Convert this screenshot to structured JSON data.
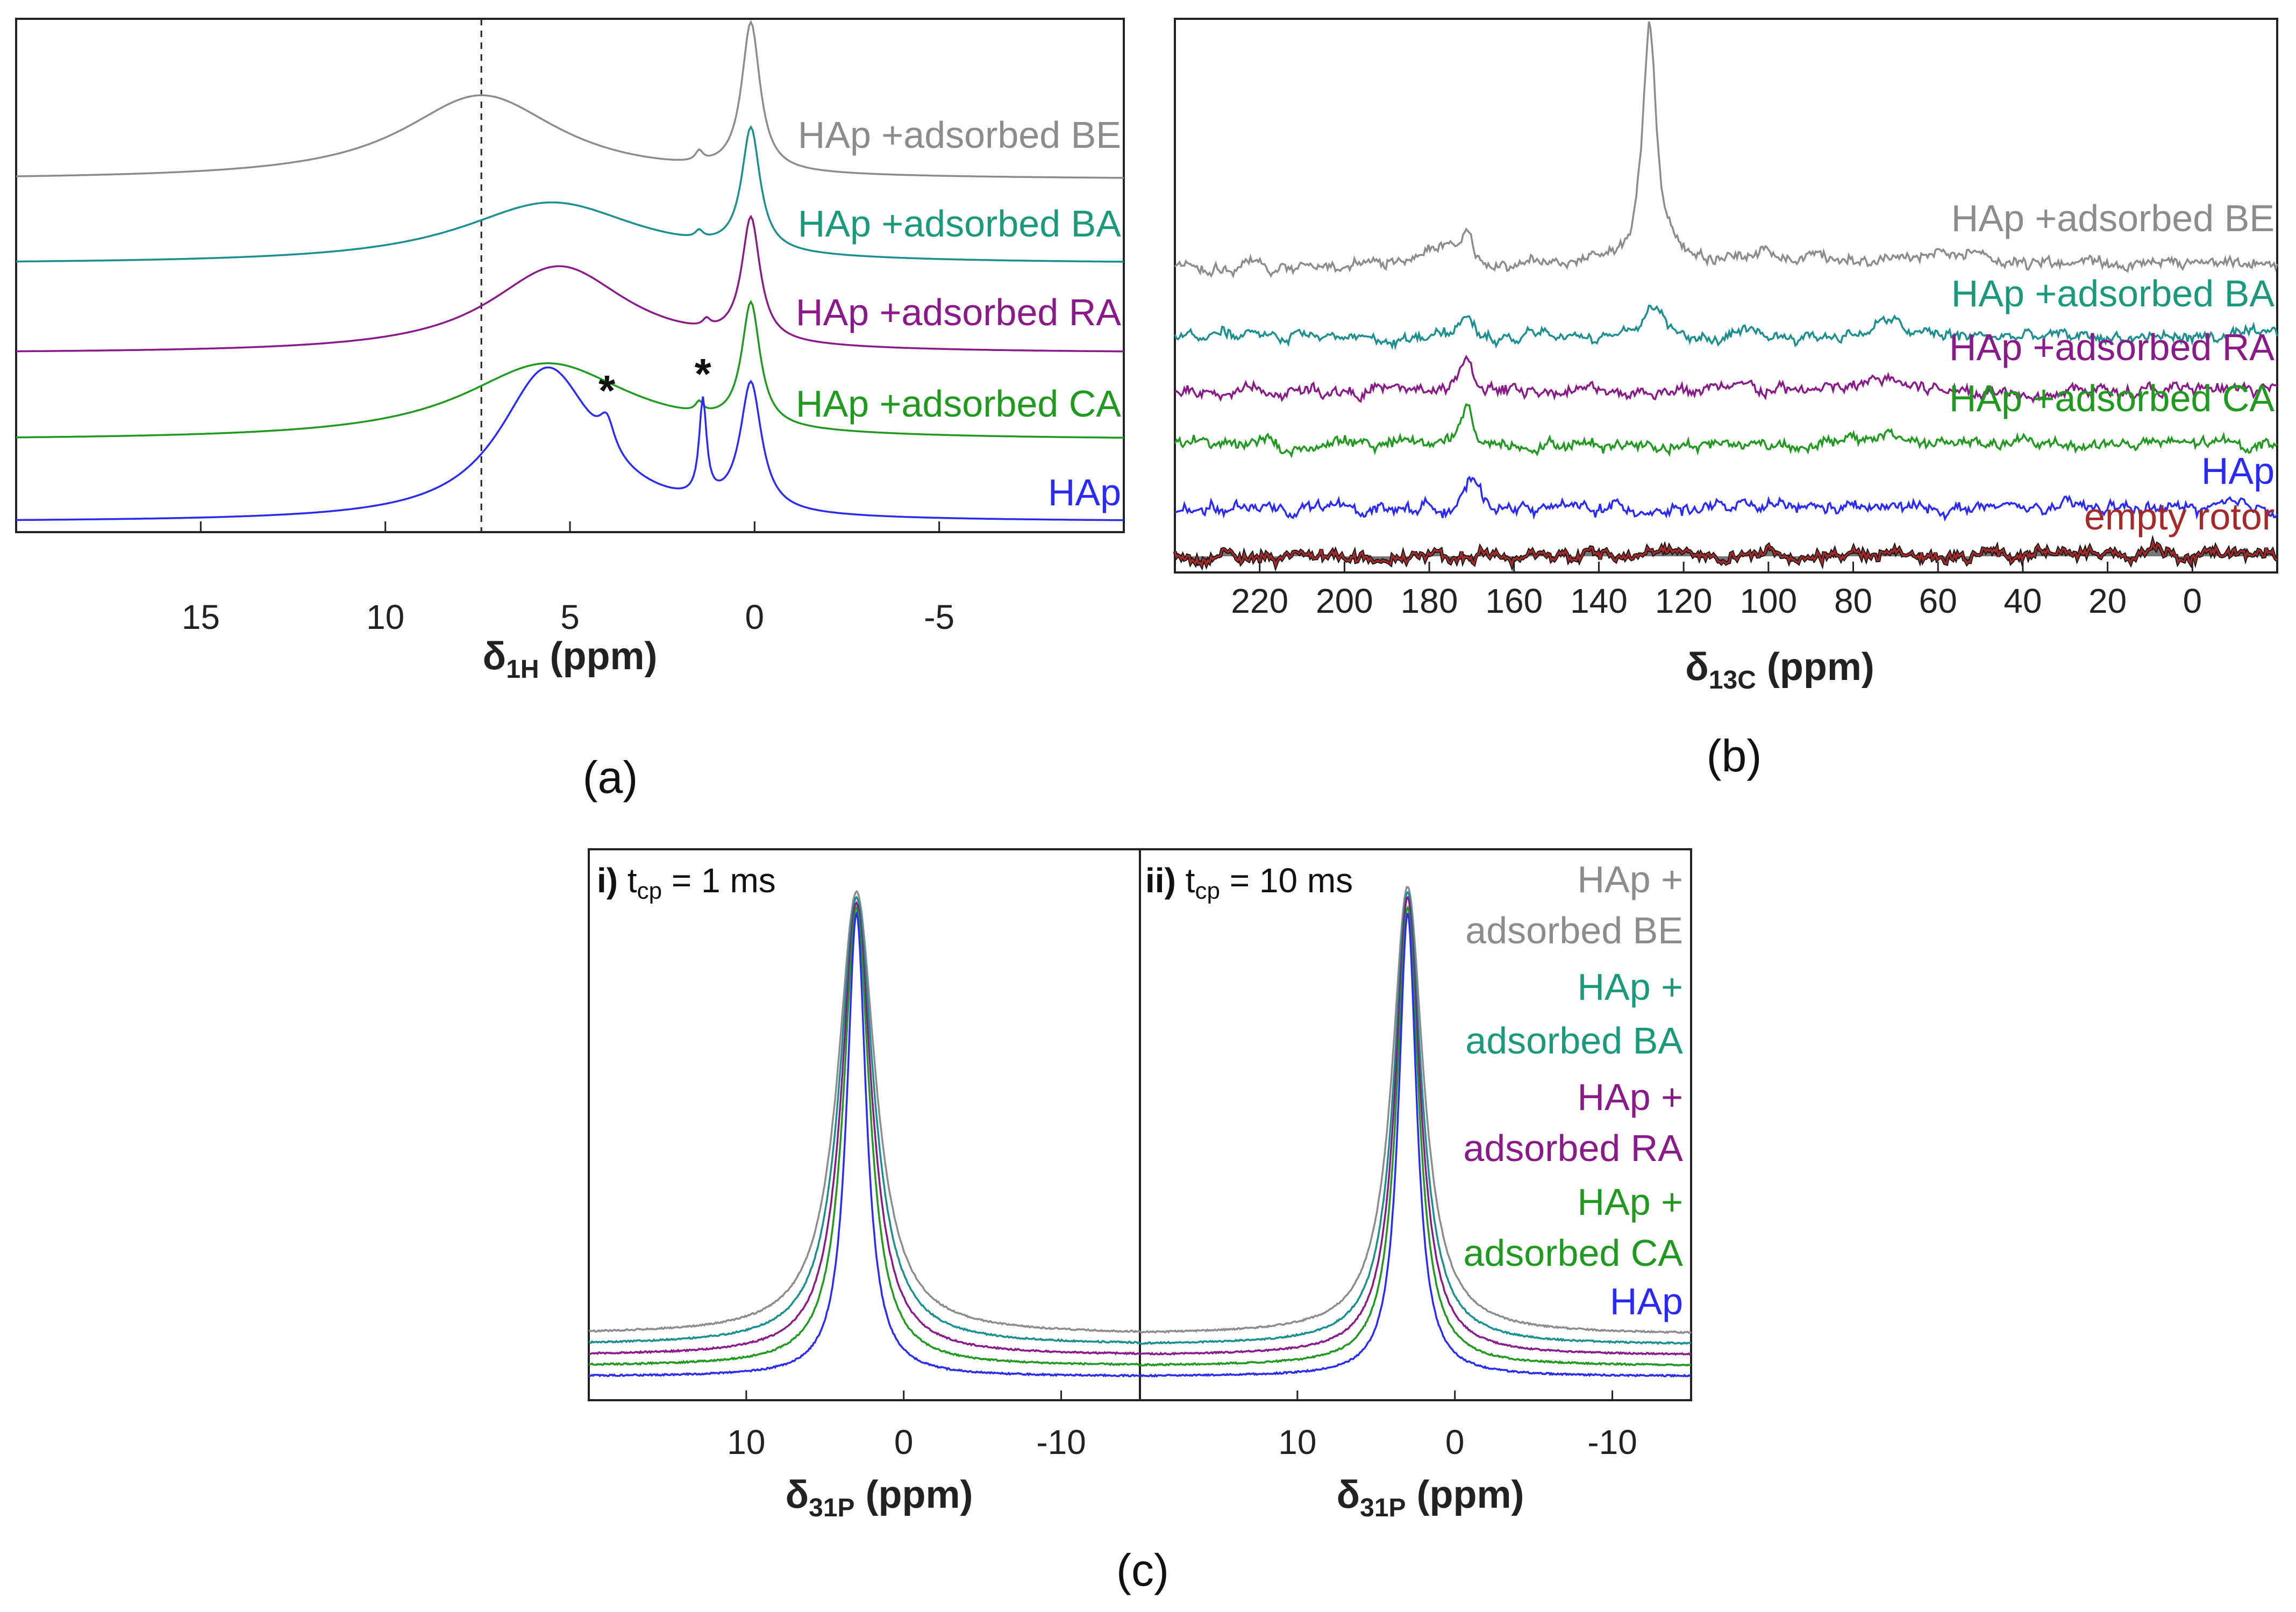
{
  "colors": {
    "BE": "#8c8c8c",
    "BA": "#1a8f8f",
    "RA": "#8a1a8a",
    "CA": "#1f9a1f",
    "HAp": "#2a2aff",
    "empty": "#a52a2a",
    "label_BA": "#1a9a7a"
  },
  "chart_data": [
    {
      "id": "a",
      "type": "line",
      "panel_label": "(a)",
      "xlabel_main": "δ",
      "xlabel_sub": "1H",
      "xlabel_unit": " (ppm)",
      "xlim": [
        20,
        -10
      ],
      "ticks": [
        15,
        10,
        5,
        0,
        -5
      ],
      "tick_labels": [
        "15",
        "10",
        "5",
        "0",
        "-5"
      ],
      "dashed_line_ppm": 7.4,
      "annotations": [
        {
          "text": "*",
          "x": 4.0
        },
        {
          "text": "*",
          "x": 1.4
        }
      ],
      "series": [
        {
          "name": "HAp +adsorbed BE",
          "color_key": "BE",
          "baseline": 0.69,
          "peaks": [
            {
              "c": 7.4,
              "h": 0.165,
              "w": 2.6
            },
            {
              "c": 0.1,
              "h": 0.29,
              "w": 0.3
            },
            {
              "c": 1.5,
              "h": 0.02,
              "w": 0.12
            }
          ]
        },
        {
          "name": "HAp +adsorbed BA",
          "color_key": "BA",
          "baseline": 0.525,
          "peaks": [
            {
              "c": 5.5,
              "h": 0.12,
              "w": 3.0
            },
            {
              "c": 0.1,
              "h": 0.24,
              "w": 0.3
            },
            {
              "c": 1.5,
              "h": 0.015,
              "w": 0.12
            }
          ]
        },
        {
          "name": "HAp +adsorbed RA",
          "color_key": "RA",
          "baseline": 0.35,
          "peaks": [
            {
              "c": 5.3,
              "h": 0.17,
              "w": 2.3
            },
            {
              "c": 0.1,
              "h": 0.24,
              "w": 0.3
            },
            {
              "c": 1.3,
              "h": 0.015,
              "w": 0.12
            }
          ]
        },
        {
          "name": "HAp +adsorbed CA",
          "color_key": "CA",
          "baseline": 0.18,
          "peaks": [
            {
              "c": 5.6,
              "h": 0.15,
              "w": 2.8
            },
            {
              "c": 0.1,
              "h": 0.24,
              "w": 0.3
            },
            {
              "c": 1.5,
              "h": 0.02,
              "w": 0.12
            }
          ]
        },
        {
          "name": "HAp",
          "color_key": "HAp",
          "baseline": 0.02,
          "peaks": [
            {
              "c": 5.6,
              "h": 0.3,
              "w": 1.6
            },
            {
              "c": 4.0,
              "h": 0.06,
              "w": 0.25
            },
            {
              "c": 1.4,
              "h": 0.19,
              "w": 0.12
            },
            {
              "c": 0.1,
              "h": 0.25,
              "w": 0.35
            }
          ]
        }
      ]
    },
    {
      "id": "b",
      "type": "line",
      "panel_label": "(b)",
      "xlabel_main": "δ",
      "xlabel_sub": "13C",
      "xlabel_unit": " (ppm)",
      "xlim": [
        240,
        -20
      ],
      "ticks": [
        220,
        200,
        180,
        160,
        140,
        120,
        100,
        80,
        60,
        40,
        20,
        0
      ],
      "tick_labels": [
        "220",
        "200",
        "180",
        "160",
        "140",
        "120",
        "100",
        "80",
        "60",
        "40",
        "20",
        "0"
      ],
      "series": [
        {
          "name": "HAp +adsorbed BE",
          "color_key": "BE",
          "baseline": 0.54,
          "peaks": [
            {
              "c": 128,
              "h": 0.45,
              "w": 2
            },
            {
              "c": 171,
              "h": 0.06,
              "w": 1.5
            },
            {
              "c": 178,
              "h": 0.03,
              "w": 5
            },
            {
              "c": 100,
              "h": 0.02,
              "w": 20
            },
            {
              "c": 60,
              "h": 0.015,
              "w": 25
            }
          ]
        },
        {
          "name": "HAp +adsorbed BA",
          "color_key": "BA",
          "baseline": 0.41,
          "peaks": [
            {
              "c": 128,
              "h": 0.06,
              "w": 3
            },
            {
              "c": 171,
              "h": 0.05,
              "w": 1.5
            },
            {
              "c": 72,
              "h": 0.03,
              "w": 4
            }
          ]
        },
        {
          "name": "HAp +adsorbed RA",
          "color_key": "RA",
          "baseline": 0.31,
          "peaks": [
            {
              "c": 171,
              "h": 0.06,
              "w": 1.5
            },
            {
              "c": 72,
              "h": 0.025,
              "w": 4
            }
          ]
        },
        {
          "name": "HAp +adsorbed CA",
          "color_key": "CA",
          "baseline": 0.21,
          "peaks": [
            {
              "c": 171,
              "h": 0.07,
              "w": 1.5
            },
            {
              "c": 72,
              "h": 0.02,
              "w": 4
            }
          ]
        },
        {
          "name": "HAp",
          "color_key": "HAp",
          "baseline": 0.09,
          "peaks": [
            {
              "c": 170,
              "h": 0.05,
              "w": 2
            }
          ]
        },
        {
          "name": "empty rotor",
          "color_key": "empty",
          "baseline": 0.0,
          "peaks": [],
          "filled": true
        }
      ]
    },
    {
      "id": "c-i",
      "type": "line",
      "inset_label_bold": "i)",
      "inset_label_text": " t",
      "inset_label_sub": "cp",
      "inset_label_rest": " = 1 ms",
      "xlabel_main": "δ",
      "xlabel_sub": "31P",
      "xlabel_unit": " (ppm)",
      "xlim": [
        20,
        -15
      ],
      "ticks": [
        10,
        0,
        -10
      ],
      "tick_labels": [
        "10",
        "0",
        "-10"
      ],
      "series": [
        {
          "name": "HAp + adsorbed BE",
          "color_key": "BE",
          "baseline": 0.12,
          "peak": {
            "c": 3.0,
            "h": 0.84,
            "w": 1.45
          }
        },
        {
          "name": "HAp + adsorbed BA",
          "color_key": "BA",
          "baseline": 0.1,
          "peak": {
            "c": 3.0,
            "h": 0.85,
            "w": 1.3
          }
        },
        {
          "name": "HAp + adsorbed RA",
          "color_key": "RA",
          "baseline": 0.08,
          "peak": {
            "c": 3.0,
            "h": 0.86,
            "w": 1.15
          }
        },
        {
          "name": "HAp + adsorbed CA",
          "color_key": "CA",
          "baseline": 0.06,
          "peak": {
            "c": 3.0,
            "h": 0.87,
            "w": 1.0
          }
        },
        {
          "name": "HAp",
          "color_key": "HAp",
          "baseline": 0.04,
          "peak": {
            "c": 3.0,
            "h": 0.88,
            "w": 0.75
          }
        }
      ]
    },
    {
      "id": "c-ii",
      "type": "line",
      "inset_label_bold": "ii)",
      "inset_label_text": " t",
      "inset_label_sub": "cp",
      "inset_label_rest": " = 10 ms",
      "xlabel_main": "δ",
      "xlabel_sub": "31P",
      "xlabel_unit": " (ppm)",
      "xlim": [
        20,
        -15
      ],
      "ticks": [
        10,
        0,
        -10
      ],
      "tick_labels": [
        "10",
        "0",
        "-10"
      ],
      "series": [
        {
          "name": "HAp + adsorbed BE",
          "color_key": "BE",
          "baseline": 0.12,
          "peak": {
            "c": 3.0,
            "h": 0.85,
            "w": 1.2
          }
        },
        {
          "name": "HAp + adsorbed BA",
          "color_key": "BA",
          "baseline": 0.1,
          "peak": {
            "c": 3.0,
            "h": 0.86,
            "w": 1.05
          }
        },
        {
          "name": "HAp + adsorbed RA",
          "color_key": "RA",
          "baseline": 0.08,
          "peak": {
            "c": 3.0,
            "h": 0.87,
            "w": 0.95
          }
        },
        {
          "name": "HAp + adsorbed CA",
          "color_key": "CA",
          "baseline": 0.06,
          "peak": {
            "c": 3.0,
            "h": 0.87,
            "w": 0.85
          }
        },
        {
          "name": "HAp",
          "color_key": "HAp",
          "baseline": 0.04,
          "peak": {
            "c": 3.0,
            "h": 0.88,
            "w": 0.7
          }
        }
      ]
    }
  ],
  "panel_c": {
    "panel_label": "(c)",
    "legend": [
      {
        "line1": "HAp +",
        "line2": "adsorbed BE",
        "color_key": "BE"
      },
      {
        "line1": "HAp +",
        "line2": "adsorbed BA",
        "color_key": "label_BA"
      },
      {
        "line1": "HAp +",
        "line2": "adsorbed RA",
        "color_key": "RA"
      },
      {
        "line1": "HAp +",
        "line2": "adsorbed CA",
        "color_key": "CA"
      },
      {
        "line1": "HAp",
        "line2": "",
        "color_key": "HAp"
      }
    ]
  }
}
